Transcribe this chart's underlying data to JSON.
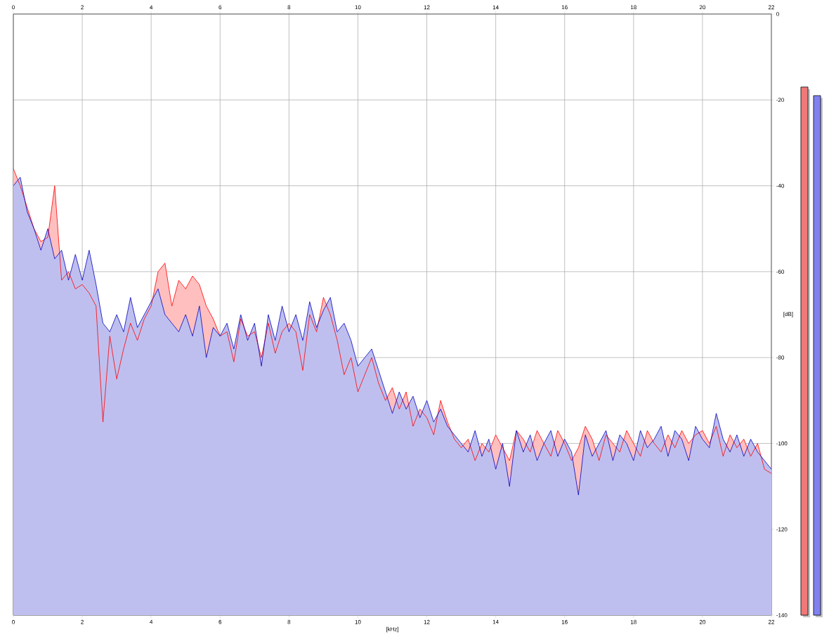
{
  "chart_data": [
    {
      "type": "area",
      "xlabel": "[kHz]",
      "ylabel": "[dB]",
      "x": [
        0,
        0.2,
        0.4,
        0.6,
        0.8,
        1.0,
        1.2,
        1.4,
        1.6,
        1.8,
        2.0,
        2.2,
        2.4,
        2.6,
        2.8,
        3.0,
        3.2,
        3.4,
        3.6,
        3.8,
        4.0,
        4.2,
        4.4,
        4.6,
        4.8,
        5.0,
        5.2,
        5.4,
        5.6,
        5.8,
        6.0,
        6.2,
        6.4,
        6.6,
        6.8,
        7.0,
        7.2,
        7.4,
        7.6,
        7.8,
        8.0,
        8.2,
        8.4,
        8.6,
        8.8,
        9.0,
        9.2,
        9.4,
        9.6,
        9.8,
        10.0,
        10.2,
        10.4,
        10.6,
        10.8,
        11.0,
        11.2,
        11.4,
        11.6,
        11.8,
        12.0,
        12.2,
        12.4,
        12.6,
        12.8,
        13.0,
        13.2,
        13.4,
        13.6,
        13.8,
        14.0,
        14.2,
        14.4,
        14.6,
        14.8,
        15.0,
        15.2,
        15.4,
        15.6,
        15.8,
        16.0,
        16.2,
        16.4,
        16.6,
        16.8,
        17.0,
        17.2,
        17.4,
        17.6,
        17.8,
        18.0,
        18.2,
        18.4,
        18.6,
        18.8,
        19.0,
        19.2,
        19.4,
        19.6,
        19.8,
        20.0,
        20.2,
        20.4,
        20.6,
        20.8,
        21.0,
        21.2,
        21.4,
        21.6,
        21.8,
        22.0
      ],
      "series": [
        {
          "color": "#ff0000",
          "values": [
            -36,
            -40,
            -45,
            -50,
            -53,
            -52,
            -40,
            -62,
            -60,
            -64,
            -63,
            -65,
            -68,
            -95,
            -75,
            -85,
            -78,
            -72,
            -76,
            -71,
            -68,
            -60,
            -58,
            -68,
            -62,
            -64,
            -61,
            -63,
            -68,
            -71,
            -75,
            -74,
            -81,
            -71,
            -75,
            -74,
            -80,
            -72,
            -79,
            -74,
            -72,
            -74,
            -83,
            -70,
            -74,
            -66,
            -70,
            -76,
            -84,
            -80,
            -88,
            -84,
            -80,
            -86,
            -90,
            -87,
            -92,
            -88,
            -96,
            -92,
            -94,
            -98,
            -90,
            -95,
            -99,
            -101,
            -99,
            -104,
            -100,
            -102,
            -98,
            -101,
            -104,
            -97,
            -99,
            -102,
            -97,
            -100,
            -103,
            -97,
            -100,
            -104,
            -101,
            -96,
            -99,
            -104,
            -98,
            -100,
            -102,
            -97,
            -100,
            -103,
            -97,
            -100,
            -102,
            -98,
            -101,
            -97,
            -100,
            -98,
            -97,
            -100,
            -96,
            -103,
            -98,
            -101,
            -99,
            -103,
            -100,
            -106,
            -107
          ]
        },
        {
          "color": "#0000c0",
          "values": [
            -40,
            -38,
            -46,
            -50,
            -55,
            -50,
            -57,
            -55,
            -62,
            -56,
            -62,
            -55,
            -63,
            -72,
            -74,
            -70,
            -74,
            -66,
            -73,
            -70,
            -67,
            -64,
            -70,
            -72,
            -74,
            -70,
            -75,
            -68,
            -80,
            -73,
            -75,
            -72,
            -78,
            -70,
            -76,
            -72,
            -82,
            -70,
            -76,
            -68,
            -74,
            -70,
            -76,
            -67,
            -73,
            -69,
            -66,
            -74,
            -72,
            -76,
            -82,
            -80,
            -78,
            -83,
            -88,
            -93,
            -88,
            -92,
            -89,
            -94,
            -90,
            -95,
            -92,
            -96,
            -98,
            -100,
            -102,
            -97,
            -103,
            -99,
            -106,
            -100,
            -110,
            -97,
            -102,
            -98,
            -104,
            -100,
            -97,
            -103,
            -99,
            -102,
            -112,
            -98,
            -103,
            -100,
            -97,
            -104,
            -98,
            -100,
            -104,
            -97,
            -101,
            -99,
            -96,
            -103,
            -97,
            -99,
            -104,
            -96,
            -99,
            -101,
            -93,
            -99,
            -102,
            -98,
            -103,
            -99,
            -102,
            -104,
            -106
          ]
        }
      ],
      "xlim": [
        0,
        22
      ],
      "xticks": [
        0,
        2,
        4,
        6,
        8,
        10,
        12,
        14,
        16,
        18,
        20,
        22
      ],
      "x2lim": [
        0,
        22
      ],
      "x2ticks": [
        0,
        2,
        4,
        6,
        8,
        10,
        12,
        14,
        16,
        18,
        20,
        22
      ],
      "ylim": [
        -140,
        0
      ],
      "yticks": [
        -140,
        -120,
        -100,
        -80,
        -60,
        -40,
        -20,
        0
      ],
      "grid": true
    },
    {
      "type": "bar",
      "categories": [
        null,
        null
      ],
      "base": [
        -140,
        -140
      ],
      "values": [
        123,
        121
      ],
      "colors": [
        "#f07878",
        "#8080f0"
      ],
      "ylim": [
        -140,
        0
      ],
      "tick_labels": false
    }
  ]
}
